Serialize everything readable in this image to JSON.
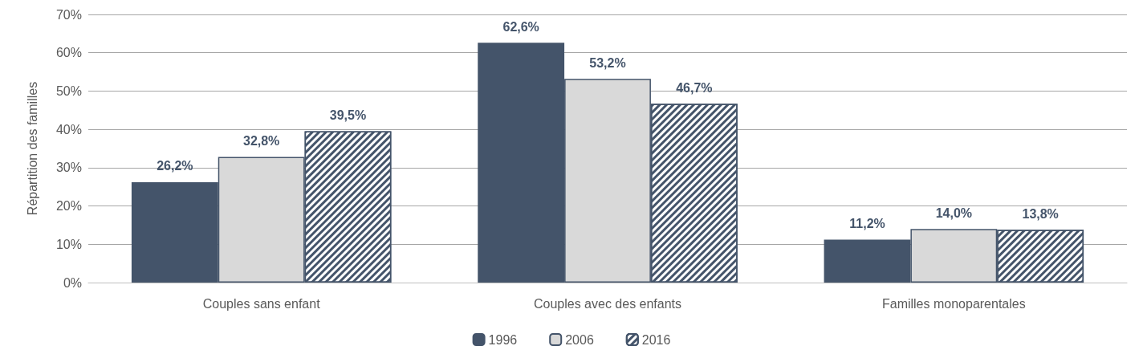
{
  "chart_data": {
    "type": "bar",
    "ylabel": "Répartition des familles",
    "categories": [
      "Couples sans enfant",
      "Couples avec des enfants",
      "Familles monoparentales"
    ],
    "series": [
      {
        "name": "1996",
        "color": "#44546a",
        "values": [
          26.2,
          62.6,
          11.2
        ],
        "value_labels": [
          "26,2%",
          "62,6%",
          "11,2%"
        ]
      },
      {
        "name": "2006",
        "color": "#d9d9d9",
        "values": [
          32.8,
          53.2,
          14.0
        ],
        "value_labels": [
          "32,8%",
          "53,2%",
          "14,0%"
        ]
      },
      {
        "name": "2016",
        "color": "#44546a",
        "values": [
          39.5,
          46.7,
          13.8
        ],
        "value_labels": [
          "39,5%",
          "46,7%",
          "13,8%"
        ]
      }
    ],
    "ylim": [
      0,
      70
    ],
    "yticks": [
      {
        "value": 0,
        "label": "0%"
      },
      {
        "value": 10,
        "label": "10%"
      },
      {
        "value": 20,
        "label": "20%"
      },
      {
        "value": 30,
        "label": "30%"
      },
      {
        "value": 40,
        "label": "40%"
      },
      {
        "value": 50,
        "label": "50%"
      },
      {
        "value": 60,
        "label": "60%"
      },
      {
        "value": 70,
        "label": "70%"
      }
    ],
    "grid": "y",
    "legend": "bottom"
  }
}
